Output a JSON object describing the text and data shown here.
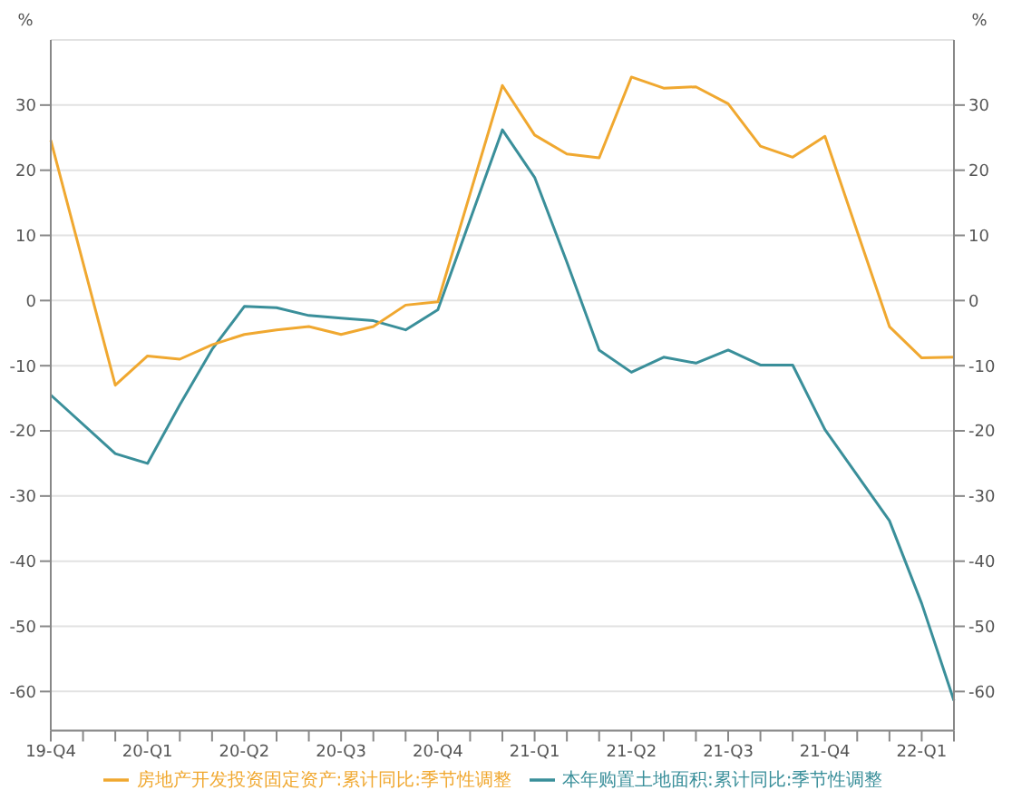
{
  "chart_data": {
    "type": "line",
    "ylabel": "%",
    "y2label": "%",
    "categories": [
      "19-Q4",
      null,
      null,
      "20-Q1",
      null,
      null,
      "20-Q2",
      null,
      null,
      "20-Q3",
      null,
      null,
      "20-Q4",
      null,
      null,
      "21-Q1",
      null,
      null,
      "21-Q2",
      null,
      null,
      "21-Q3",
      null,
      null,
      "21-Q4",
      null,
      null,
      "22-Q1",
      null
    ],
    "series": [
      {
        "name": "本年购置土地面积:累计同比:季节性调整",
        "color": "#3a8f9a",
        "values": [
          -14.5,
          null,
          -23.5,
          -25,
          -16,
          -7.5,
          -0.9,
          -1.1,
          -2.3,
          -2.7,
          -3.1,
          -4.5,
          -1.4,
          null,
          26.2,
          18.9,
          5.9,
          -7.6,
          -11,
          -8.7,
          -9.6,
          -7.6,
          -9.9,
          -9.9,
          -19.8,
          null,
          -33.8,
          -46.5,
          -61.4
        ]
      },
      {
        "name": "房地产开发投资固定资产:累计同比:季节性调整",
        "color": "#f0a830",
        "values": [
          24.6,
          null,
          -13,
          -8.5,
          -9,
          -6.8,
          -5.2,
          -4.5,
          -4,
          -5.2,
          -4,
          -0.7,
          -0.2,
          null,
          33,
          25.4,
          22.5,
          21.9,
          34.3,
          32.6,
          32.8,
          30.2,
          23.7,
          22,
          25.2,
          null,
          -4,
          -8.8,
          -8.7
        ]
      }
    ],
    "ylim": [
      -66,
      40
    ],
    "yticks": [
      -60,
      -50,
      -40,
      -30,
      -20,
      -10,
      0,
      10,
      20,
      30
    ],
    "y2lim": [
      -66,
      40
    ],
    "y2ticks": [
      -60,
      -50,
      -40,
      -30,
      -20,
      -10,
      0,
      10,
      20,
      30
    ],
    "grid": "y",
    "legend": "bottom",
    "marker": "none",
    "line_style": "solid"
  }
}
